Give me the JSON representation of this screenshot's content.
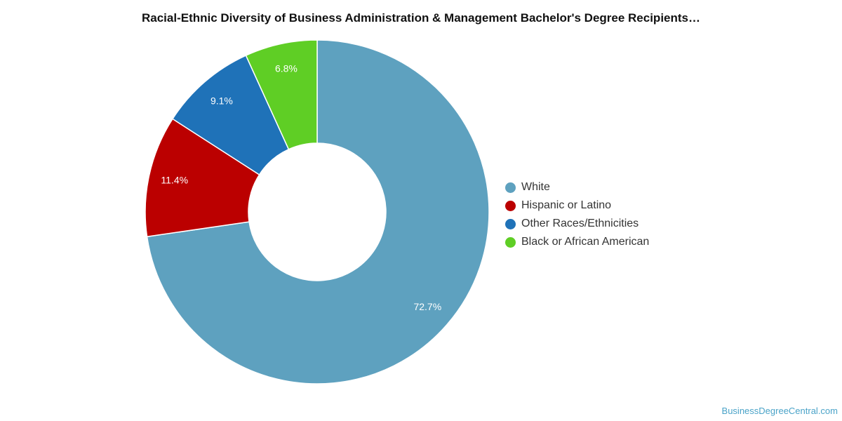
{
  "chart_data": {
    "type": "pie",
    "title": "Racial-Ethnic Diversity of Business Administration & Management Bachelor's Degree Recipients…",
    "categories": [
      "White",
      "Hispanic or Latino",
      "Other Races/Ethnicities",
      "Black or African American"
    ],
    "values": [
      72.7,
      11.4,
      9.1,
      6.8
    ],
    "labels": [
      "72.7%",
      "11.4%",
      "9.1%",
      "6.8%"
    ],
    "colors": [
      "#5ea1bf",
      "#bb0000",
      "#1f72b8",
      "#5fce25"
    ],
    "donut": true,
    "legend_position": "right"
  },
  "legend": {
    "items": [
      {
        "label": "White",
        "color": "#5ea1bf"
      },
      {
        "label": "Hispanic or Latino",
        "color": "#bb0000"
      },
      {
        "label": "Other Races/Ethnicities",
        "color": "#1f72b8"
      },
      {
        "label": "Black or African American",
        "color": "#5fce25"
      }
    ]
  },
  "credit": "BusinessDegreeCentral.com"
}
